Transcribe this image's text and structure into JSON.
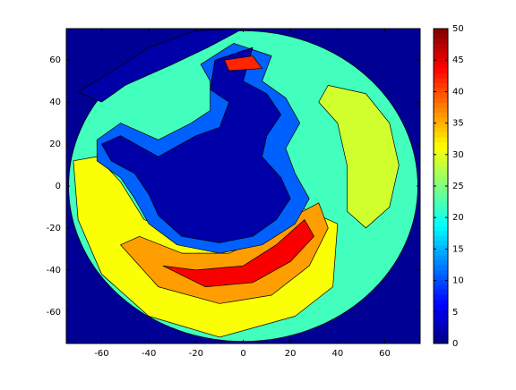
{
  "chart_data": {
    "type": "contour",
    "xlim": [
      -75,
      75
    ],
    "ylim": [
      -75,
      75
    ],
    "xticks": [
      -60,
      -40,
      -20,
      0,
      20,
      40,
      60
    ],
    "yticks": [
      -60,
      -40,
      -20,
      0,
      20,
      40,
      60
    ],
    "clim": [
      0,
      50
    ],
    "colorbar_ticks": [
      0,
      5,
      10,
      15,
      20,
      25,
      30,
      35,
      40,
      45,
      50
    ],
    "background_level": 1,
    "disk": {
      "center": [
        0,
        0
      ],
      "radius": 74,
      "level": 22
    },
    "regions": [
      {
        "level": 31,
        "points": [
          [
            -72,
            12
          ],
          [
            -62,
            14
          ],
          [
            -52,
            2
          ],
          [
            -42,
            -16
          ],
          [
            -22,
            -24
          ],
          [
            8,
            -20
          ],
          [
            24,
            -10
          ],
          [
            40,
            -18
          ],
          [
            38,
            -48
          ],
          [
            22,
            -62
          ],
          [
            -10,
            -72
          ],
          [
            -40,
            -62
          ],
          [
            -60,
            -42
          ],
          [
            -70,
            -16
          ]
        ]
      },
      {
        "level": 36,
        "points": [
          [
            -52,
            -28
          ],
          [
            -36,
            -48
          ],
          [
            -10,
            -56
          ],
          [
            12,
            -52
          ],
          [
            28,
            -38
          ],
          [
            36,
            -20
          ],
          [
            32,
            -8
          ],
          [
            22,
            -14
          ],
          [
            10,
            -24
          ],
          [
            -6,
            -32
          ],
          [
            -26,
            -32
          ],
          [
            -44,
            -24
          ]
        ]
      },
      {
        "level": 44,
        "points": [
          [
            -34,
            -38
          ],
          [
            -16,
            -48
          ],
          [
            4,
            -46
          ],
          [
            20,
            -36
          ],
          [
            30,
            -24
          ],
          [
            26,
            -16
          ],
          [
            14,
            -28
          ],
          [
            0,
            -38
          ],
          [
            -20,
            -40
          ]
        ]
      },
      {
        "level": 11,
        "points": [
          [
            -62,
            22
          ],
          [
            -52,
            30
          ],
          [
            -36,
            22
          ],
          [
            -22,
            30
          ],
          [
            -14,
            36
          ],
          [
            -14,
            50
          ],
          [
            -18,
            58
          ],
          [
            -4,
            68
          ],
          [
            12,
            62
          ],
          [
            8,
            50
          ],
          [
            18,
            42
          ],
          [
            24,
            30
          ],
          [
            18,
            18
          ],
          [
            22,
            6
          ],
          [
            28,
            -6
          ],
          [
            22,
            -18
          ],
          [
            8,
            -28
          ],
          [
            -10,
            -32
          ],
          [
            -28,
            -28
          ],
          [
            -40,
            -18
          ],
          [
            -46,
            -6
          ],
          [
            -52,
            4
          ],
          [
            -62,
            12
          ]
        ]
      },
      {
        "level": 2,
        "points": [
          [
            -52,
            24
          ],
          [
            -36,
            14
          ],
          [
            -20,
            24
          ],
          [
            -10,
            28
          ],
          [
            -6,
            40
          ],
          [
            -14,
            46
          ],
          [
            -12,
            60
          ],
          [
            4,
            66
          ],
          [
            0,
            50
          ],
          [
            10,
            44
          ],
          [
            16,
            34
          ],
          [
            10,
            24
          ],
          [
            8,
            14
          ],
          [
            16,
            4
          ],
          [
            20,
            -6
          ],
          [
            14,
            -16
          ],
          [
            4,
            -24
          ],
          [
            -10,
            -27
          ],
          [
            -26,
            -24
          ],
          [
            -36,
            -14
          ],
          [
            -40,
            -4
          ],
          [
            -46,
            6
          ],
          [
            -56,
            12
          ],
          [
            -60,
            20
          ]
        ]
      },
      {
        "level": 2,
        "points": [
          [
            -70,
            45
          ],
          [
            -55,
            55
          ],
          [
            -40,
            66
          ],
          [
            -20,
            74
          ],
          [
            0,
            75
          ],
          [
            -15,
            66
          ],
          [
            -30,
            58
          ],
          [
            -50,
            48
          ],
          [
            -60,
            40
          ]
        ]
      },
      {
        "level": 29,
        "points": [
          [
            36,
            48
          ],
          [
            52,
            44
          ],
          [
            62,
            30
          ],
          [
            66,
            10
          ],
          [
            62,
            -10
          ],
          [
            52,
            -20
          ],
          [
            44,
            -12
          ],
          [
            44,
            10
          ],
          [
            40,
            30
          ],
          [
            32,
            40
          ]
        ]
      },
      {
        "level": 42,
        "points": [
          [
            -8,
            60
          ],
          [
            4,
            62
          ],
          [
            8,
            56
          ],
          [
            -6,
            55
          ]
        ]
      }
    ]
  }
}
